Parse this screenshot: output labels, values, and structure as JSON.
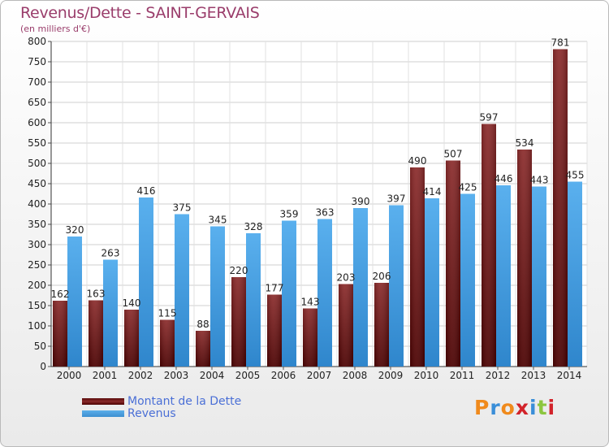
{
  "header": {
    "title": "Revenus/Dette - SAINT-GERVAIS",
    "subtitle": "(en milliers d'€)"
  },
  "legend": {
    "dette_label": "Montant de la Dette",
    "revenus_label": "Revenus"
  },
  "logo": {
    "text": "Proxiti",
    "letters": [
      "P",
      "r",
      "o",
      "x",
      "i",
      "t",
      "i"
    ],
    "colors": [
      "#f08a1c",
      "#3a8ed8",
      "#f08a1c",
      "#d2232a",
      "#3a8ed8",
      "#8cc63f",
      "#d2232a"
    ]
  },
  "colors": {
    "dette": "#7a1818",
    "revenus": "#4aa3e6",
    "title": "#9a3d6b"
  },
  "chart_data": {
    "type": "bar",
    "categories": [
      "2000",
      "2001",
      "2002",
      "2003",
      "2004",
      "2005",
      "2006",
      "2007",
      "2008",
      "2009",
      "2010",
      "2011",
      "2012",
      "2013",
      "2014"
    ],
    "series": [
      {
        "name": "Montant de la Dette",
        "values": [
          162,
          163,
          140,
          115,
          88,
          220,
          177,
          143,
          203,
          206,
          490,
          507,
          597,
          534,
          781
        ]
      },
      {
        "name": "Revenus",
        "values": [
          320,
          263,
          416,
          375,
          345,
          328,
          359,
          363,
          390,
          397,
          414,
          425,
          446,
          443,
          455
        ]
      }
    ],
    "title": "Revenus/Dette - SAINT-GERVAIS",
    "ylabel": "(en milliers d'€)",
    "ylim": [
      0,
      800
    ],
    "yticks": [
      0,
      50,
      100,
      150,
      200,
      250,
      300,
      350,
      400,
      450,
      500,
      550,
      600,
      650,
      700,
      750,
      800
    ],
    "grid": true,
    "legend_position": "bottom-left"
  }
}
